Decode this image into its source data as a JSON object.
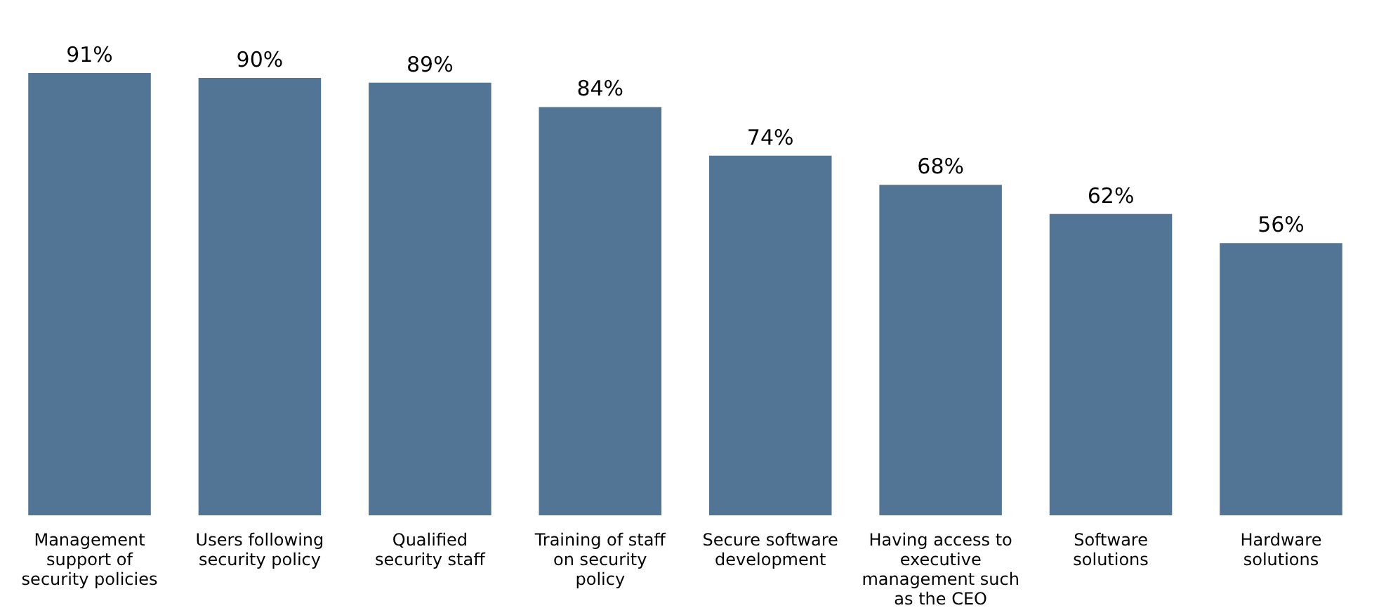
{
  "chart_data": {
    "type": "bar",
    "categories": [
      "Management support of security policies",
      "Users following security policy",
      "Qualified security staff",
      "Training of staff on security policy",
      "Secure software development",
      "Having access to executive management such as the CEO",
      "Software solutions",
      "Hardware solutions"
    ],
    "values": [
      91,
      90,
      89,
      84,
      74,
      68,
      62,
      56
    ],
    "value_labels": [
      "91%",
      "90%",
      "89%",
      "84%",
      "74%",
      "68%",
      "62%",
      "56%"
    ],
    "color": "#527596"
  }
}
